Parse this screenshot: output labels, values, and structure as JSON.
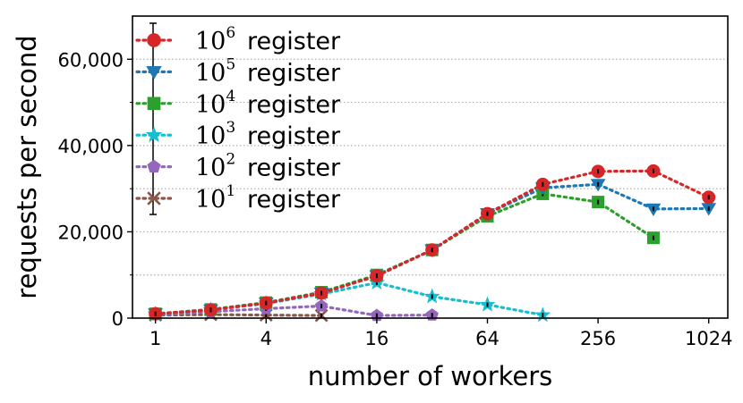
{
  "chart_data": {
    "type": "line",
    "xlabel": "number of workers",
    "ylabel": "requests per second",
    "x_scale": "log2",
    "xlim": [
      0.75,
      1300
    ],
    "ylim": [
      0,
      70000
    ],
    "x_ticks": [
      1,
      4,
      16,
      64,
      256,
      1024
    ],
    "x_tick_labels": [
      "1",
      "4",
      "16",
      "64",
      "256",
      "1024"
    ],
    "y_ticks": [
      0,
      20000,
      40000,
      60000
    ],
    "y_tick_labels": [
      "0",
      "20,000",
      "40,000",
      "60,000"
    ],
    "grid": "horizontal dotted",
    "legend_position": "top-left",
    "series": [
      {
        "name": "10^6 register",
        "legend_base": "10",
        "legend_exp": "6",
        "legend_suffix": "register",
        "color": "#d62728",
        "marker": "circle",
        "x": [
          1,
          2,
          4,
          8,
          16,
          32,
          64,
          128,
          256,
          512,
          1024
        ],
        "y": [
          1000,
          1900,
          3500,
          5800,
          9800,
          15800,
          24200,
          31000,
          34000,
          34100,
          28000
        ]
      },
      {
        "name": "10^5 register",
        "legend_base": "10",
        "legend_exp": "5",
        "legend_suffix": "register",
        "color": "#1f77b4",
        "marker": "triangle-down",
        "x": [
          1,
          2,
          4,
          8,
          16,
          32,
          64,
          128,
          256,
          512,
          1024
        ],
        "y": [
          1000,
          1900,
          3500,
          5800,
          9800,
          15800,
          24200,
          30200,
          31000,
          25300,
          25400
        ]
      },
      {
        "name": "10^4 register",
        "legend_base": "10",
        "legend_exp": "4",
        "legend_suffix": "register",
        "color": "#2ca02c",
        "marker": "square",
        "x": [
          1,
          2,
          4,
          8,
          16,
          32,
          64,
          128,
          256,
          512
        ],
        "y": [
          1000,
          2000,
          3600,
          6000,
          10000,
          15800,
          23600,
          28800,
          26900,
          18600
        ]
      },
      {
        "name": "10^3 register",
        "legend_base": "10",
        "legend_exp": "3",
        "legend_suffix": "register",
        "color": "#17becf",
        "marker": "star",
        "x": [
          1,
          2,
          4,
          8,
          16,
          32,
          64,
          128
        ],
        "y": [
          900,
          1900,
          3400,
          5600,
          8200,
          5000,
          3100,
          700
        ]
      },
      {
        "name": "10^2 register",
        "legend_base": "10",
        "legend_exp": "2",
        "legend_suffix": "register",
        "color": "#9467bd",
        "marker": "pentagon",
        "x": [
          1,
          2,
          4,
          8,
          16,
          32
        ],
        "y": [
          800,
          1500,
          2200,
          2800,
          600,
          700
        ]
      },
      {
        "name": "10^1 register",
        "legend_base": "10",
        "legend_exp": "1",
        "legend_suffix": "register",
        "color": "#8c564b",
        "marker": "x",
        "x": [
          1,
          2,
          4,
          8
        ],
        "y": [
          700,
          800,
          700,
          600
        ]
      }
    ]
  }
}
